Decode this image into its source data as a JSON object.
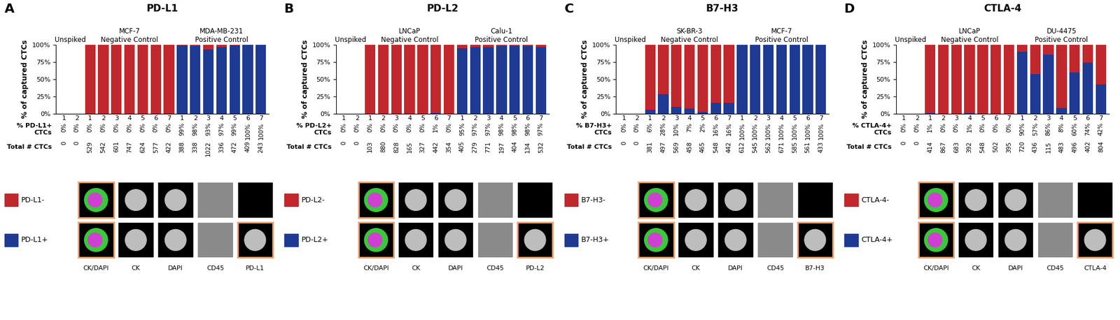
{
  "chart_data": [
    {
      "type": "bar",
      "panel": "A",
      "title": "PD-L1",
      "stacked": true,
      "data_labels": true,
      "ylabel": "% of captured CTCs",
      "ylim": [
        0,
        100
      ],
      "yticks": [
        {
          "value": 0,
          "label": "0%"
        },
        {
          "value": 25,
          "label": "25%"
        },
        {
          "value": 50,
          "label": "50%"
        },
        {
          "value": 75,
          "label": "75%"
        },
        {
          "value": 100,
          "label": "100%"
        }
      ],
      "categories": [
        "1",
        "2",
        "1",
        "2",
        "3",
        "4",
        "5",
        "6",
        "7",
        "1",
        "2",
        "3",
        "4",
        "5",
        "6",
        "7"
      ],
      "groups": [
        {
          "name": "Unspiked",
          "count": 2
        },
        {
          "name": "MCF-7\nNegative Control",
          "count": 7
        },
        {
          "name": "MDA-MB-231\nPositive Control",
          "count": 7
        }
      ],
      "series": [
        {
          "name": "PD-L1+",
          "color": "#1f3a93",
          "values": [
            0,
            0,
            0,
            0,
            0,
            0,
            0,
            0,
            0,
            99,
            98,
            93,
            97,
            99,
            100,
            100
          ],
          "value_labels": [
            "0%",
            "0%",
            "0%",
            "0%",
            "0%",
            "0%",
            "0%",
            "0%",
            "0%",
            "99%",
            "98%",
            "93%",
            "97%",
            "99%",
            "100%",
            "100%"
          ]
        },
        {
          "name": "PD-L1-",
          "color": "#c0282d",
          "values": [
            0,
            0,
            100,
            100,
            100,
            100,
            100,
            100,
            100,
            1,
            2,
            7,
            3,
            1,
            0,
            0
          ]
        }
      ],
      "value_row_label": "% PD-L1+\nCTCs",
      "totals_label": "Total # CTCs",
      "totals": [
        0,
        0,
        529,
        542,
        601,
        747,
        624,
        577,
        422,
        388,
        338,
        1022,
        336,
        472,
        409,
        243
      ],
      "image_labels": [
        "CK/DAPI",
        "CK",
        "DAPI",
        "CD45",
        "PD-L1"
      ]
    },
    {
      "type": "bar",
      "panel": "B",
      "title": "PD-L2",
      "stacked": true,
      "data_labels": true,
      "ylabel": "% of captured CTCs",
      "ylim": [
        0,
        100
      ],
      "yticks": [
        {
          "value": 0,
          "label": "0%"
        },
        {
          "value": 25,
          "label": "25%"
        },
        {
          "value": 50,
          "label": "50%"
        },
        {
          "value": 75,
          "label": "75%"
        },
        {
          "value": 100,
          "label": "100%"
        }
      ],
      "categories": [
        "1",
        "2",
        "1",
        "2",
        "3",
        "4",
        "5",
        "6",
        "7",
        "1",
        "2",
        "3",
        "4",
        "5",
        "6",
        "7"
      ],
      "groups": [
        {
          "name": "Unspiked",
          "count": 2
        },
        {
          "name": "LNCaP\nNegative Control",
          "count": 7
        },
        {
          "name": "Calu-1\nPositive Control",
          "count": 7
        }
      ],
      "series": [
        {
          "name": "PD-L2+",
          "color": "#1f3a93",
          "values": [
            0,
            0,
            0,
            0,
            0,
            0,
            0,
            1,
            0,
            95,
            97,
            97,
            98,
            98,
            98,
            97
          ],
          "value_labels": [
            "0%",
            "0%",
            "0%",
            "0%",
            "0%",
            "0%",
            "0%",
            "1%",
            "0%",
            "95%",
            "97%",
            "97%",
            "98%",
            "98%",
            "98%",
            "97%"
          ]
        },
        {
          "name": "PD-L2-",
          "color": "#c0282d",
          "values": [
            0,
            0,
            100,
            100,
            100,
            100,
            100,
            99,
            100,
            5,
            3,
            3,
            2,
            2,
            2,
            3
          ]
        }
      ],
      "value_row_label": "% PD-L2+\nCTCs",
      "totals_label": "Total # CTCs",
      "totals": [
        0,
        0,
        103,
        880,
        828,
        165,
        327,
        442,
        354,
        405,
        279,
        771,
        197,
        404,
        134,
        532
      ],
      "image_labels": [
        "CK/DAPI",
        "CK",
        "DAPI",
        "CD45",
        "PD-L2"
      ]
    },
    {
      "type": "bar",
      "panel": "C",
      "title": "B7-H3",
      "stacked": true,
      "data_labels": true,
      "ylabel": "% of captured CTCs",
      "ylim": [
        0,
        100
      ],
      "yticks": [
        {
          "value": 0,
          "label": "0%"
        },
        {
          "value": 25,
          "label": "25%"
        },
        {
          "value": 50,
          "label": "50%"
        },
        {
          "value": 75,
          "label": "75%"
        },
        {
          "value": 100,
          "label": "100%"
        }
      ],
      "categories": [
        "1",
        "2",
        "1",
        "2",
        "3",
        "4",
        "5",
        "6",
        "7",
        "1",
        "2",
        "3",
        "4",
        "5",
        "6",
        "7"
      ],
      "groups": [
        {
          "name": "Unspiked",
          "count": 2
        },
        {
          "name": "SK-BR-3\nNegative Control",
          "count": 7
        },
        {
          "name": "MCF-7\nPositive Control",
          "count": 7
        }
      ],
      "series": [
        {
          "name": "B7-H3+",
          "color": "#1f3a93",
          "values": [
            0,
            0,
            6,
            28,
            10,
            7,
            2,
            16,
            16,
            100,
            100,
            100,
            100,
            100,
            100,
            100
          ],
          "value_labels": [
            "0%",
            "0%",
            "6%",
            "28%",
            "10%",
            "7%",
            "2%",
            "16%",
            "16%",
            "100%",
            "100%",
            "100%",
            "100%",
            "100%",
            "100%",
            "100%"
          ]
        },
        {
          "name": "B7-H3-",
          "color": "#c0282d",
          "values": [
            0,
            0,
            94,
            72,
            90,
            93,
            98,
            84,
            84,
            0,
            0,
            0,
            0,
            0,
            0,
            0
          ]
        }
      ],
      "value_row_label": "% B7-H3+\nCTCs",
      "totals_label": "Total # CTCs",
      "totals": [
        0,
        0,
        381,
        497,
        569,
        458,
        465,
        548,
        442,
        612,
        545,
        562,
        671,
        585,
        561,
        433
      ],
      "image_labels": [
        "CK/DAPI",
        "CK",
        "DAPI",
        "CD45",
        "B7-H3"
      ]
    },
    {
      "type": "bar",
      "panel": "D",
      "title": "CTLA-4",
      "stacked": true,
      "data_labels": true,
      "ylabel": "% of captured CTCs",
      "ylim": [
        0,
        100
      ],
      "yticks": [
        {
          "value": 0,
          "label": "0%"
        },
        {
          "value": 25,
          "label": "25%"
        },
        {
          "value": 50,
          "label": "50%"
        },
        {
          "value": 75,
          "label": "75%"
        },
        {
          "value": 100,
          "label": "100%"
        }
      ],
      "categories": [
        "1",
        "2",
        "1",
        "2",
        "3",
        "4",
        "5",
        "6",
        "7",
        "1",
        "2",
        "3",
        "4",
        "5",
        "6",
        "7"
      ],
      "groups": [
        {
          "name": "Unspiked",
          "count": 2
        },
        {
          "name": "LNCaP\nNegative Control",
          "count": 7
        },
        {
          "name": "DU-4475\nPositive Control",
          "count": 7
        }
      ],
      "series": [
        {
          "name": "CTLA-4+",
          "color": "#1f3a93",
          "values": [
            0,
            0,
            1,
            0,
            0,
            1,
            0,
            0,
            0,
            90,
            57,
            86,
            8,
            60,
            74,
            42
          ],
          "value_labels": [
            "0%",
            "0%",
            "1%",
            "0%",
            "0%",
            "1%",
            "0%",
            "0%",
            "0%",
            "90%",
            "57%",
            "86%",
            "8%",
            "60%",
            "74%",
            "42%"
          ]
        },
        {
          "name": "CTLA-4-",
          "color": "#c0282d",
          "values": [
            0,
            0,
            99,
            100,
            100,
            99,
            100,
            100,
            100,
            10,
            43,
            14,
            92,
            40,
            26,
            58
          ]
        }
      ],
      "value_row_label": "% CTLA-4+\nCTCs",
      "totals_label": "Total # CTCs",
      "totals": [
        0,
        0,
        414,
        867,
        683,
        392,
        548,
        502,
        395,
        720,
        436,
        115,
        483,
        496,
        402,
        804
      ],
      "image_labels": [
        "CK/DAPI",
        "CK",
        "DAPI",
        "CD45",
        "CTLA-4"
      ]
    }
  ]
}
